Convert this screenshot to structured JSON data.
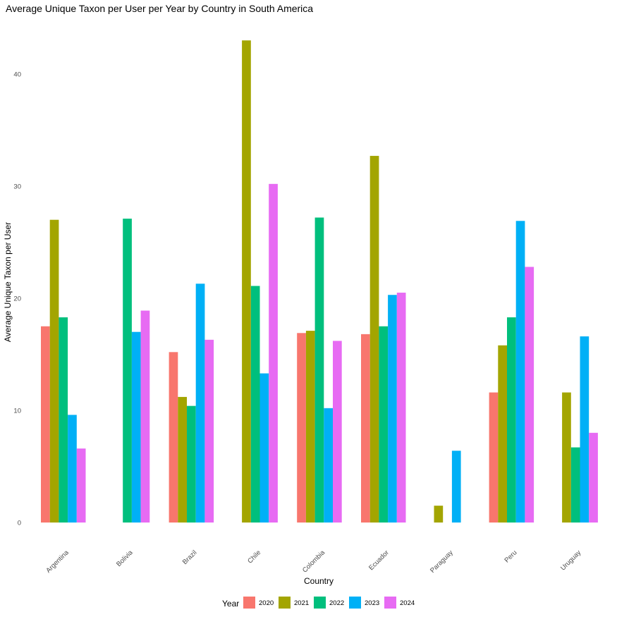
{
  "chart_data": {
    "type": "bar",
    "title": "Average Unique Taxon per User per Year by Country in South America",
    "xlabel": "Country",
    "ylabel": "Average Unique Taxon per User",
    "ylim": [
      0,
      43
    ],
    "yticks": [
      0,
      10,
      20,
      30,
      40
    ],
    "grid": false,
    "legend_title": "Year",
    "legend_position": "bottom",
    "categories": [
      "Argentina",
      "Bolivia",
      "Brazil",
      "Chile",
      "Colombia",
      "Ecuador",
      "Paraguay",
      "Peru",
      "Uruguay"
    ],
    "series": [
      {
        "name": "2020",
        "color": "#F8766D",
        "values": [
          17.5,
          null,
          15.2,
          null,
          16.9,
          16.8,
          null,
          11.6,
          null
        ]
      },
      {
        "name": "2021",
        "color": "#A3A500",
        "values": [
          27.0,
          null,
          11.2,
          43.0,
          17.1,
          32.7,
          1.5,
          15.8,
          11.6
        ]
      },
      {
        "name": "2022",
        "color": "#00BF7D",
        "values": [
          18.3,
          27.1,
          10.4,
          21.1,
          27.2,
          17.5,
          null,
          18.3,
          6.7
        ]
      },
      {
        "name": "2023",
        "color": "#00B0F6",
        "values": [
          9.6,
          17.0,
          21.3,
          13.3,
          10.2,
          20.3,
          6.4,
          26.9,
          16.6
        ]
      },
      {
        "name": "2024",
        "color": "#E76BF3",
        "values": [
          6.6,
          18.9,
          16.3,
          30.2,
          16.2,
          20.5,
          null,
          22.8,
          8.0
        ]
      }
    ]
  }
}
